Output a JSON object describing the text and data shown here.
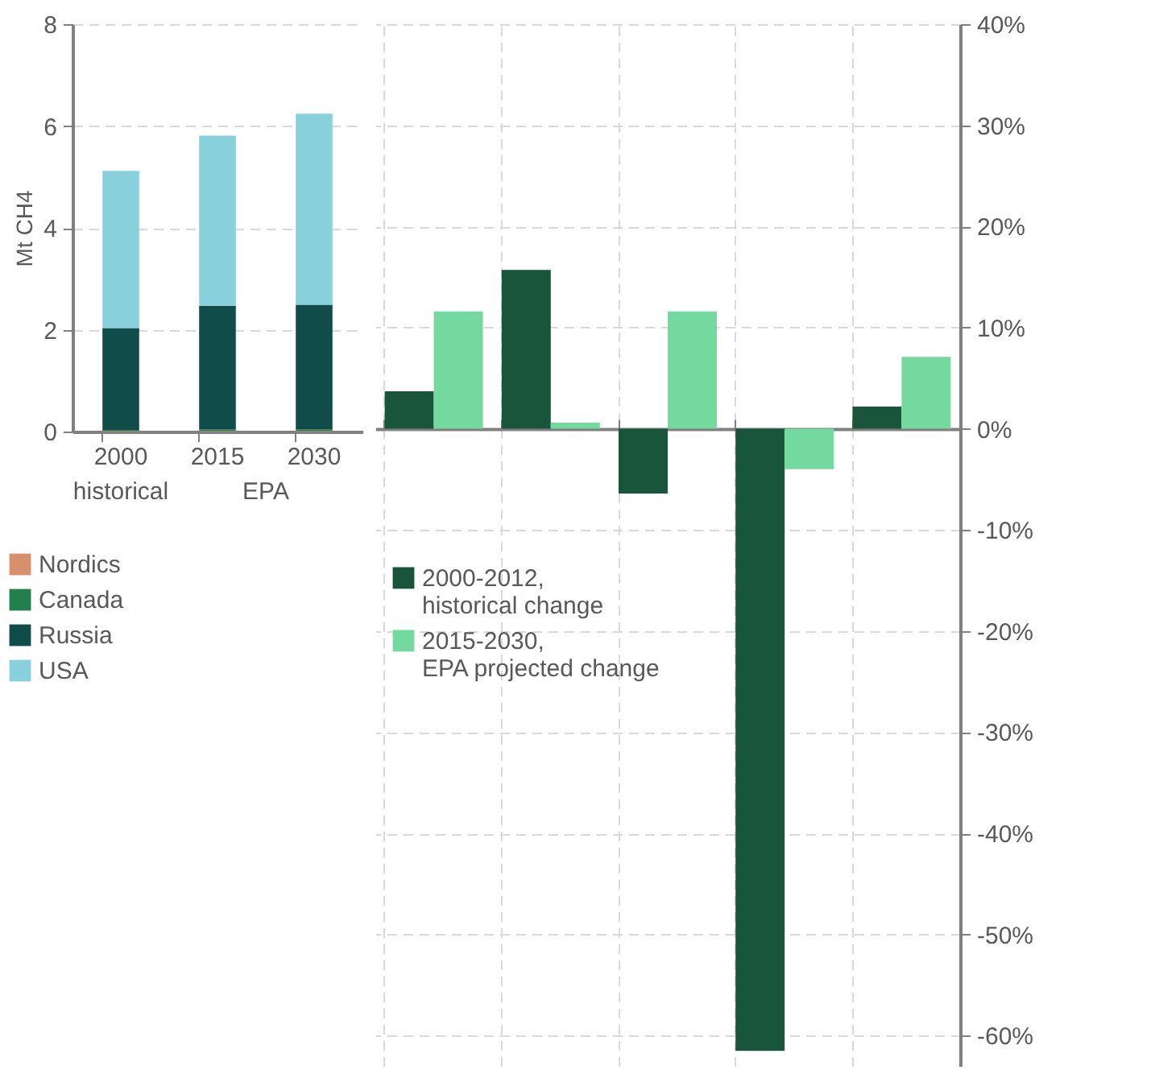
{
  "chart_data": [
    {
      "type": "bar",
      "stacked": true,
      "ylabel": "Mt CH4",
      "categories": [
        "2000",
        "2015",
        "2030"
      ],
      "series": [
        {
          "name": "Nordics",
          "color": "#d88f6e",
          "values": [
            0.01,
            0.01,
            0.01
          ]
        },
        {
          "name": "Canada",
          "color": "#23804c",
          "values": [
            0.02,
            0.03,
            0.03
          ]
        },
        {
          "name": "Russia",
          "color": "#0f4c4a",
          "values": [
            2.0,
            2.43,
            2.45
          ]
        },
        {
          "name": "USA",
          "color": "#87d0dc",
          "values": [
            3.09,
            3.34,
            3.75
          ]
        }
      ],
      "ylim": [
        0,
        8
      ],
      "yticks": [
        0,
        2,
        4,
        6,
        8
      ],
      "grid": "y",
      "legend": "bottom left",
      "annotations": [
        "historical",
        "EPA"
      ]
    },
    {
      "type": "bar",
      "categories": [
        null,
        null,
        null,
        null,
        null
      ],
      "series": [
        {
          "name": "2000-2012, historical change",
          "color": "#18553a",
          "axis": "y2",
          "values": [
            3.7,
            15.7,
            -6.4,
            -61.5,
            2.2
          ]
        },
        {
          "name": "2015-2030, EPA projected change",
          "color": "#74d99f",
          "axis": "y2",
          "values": [
            11.6,
            0.6,
            11.6,
            -4.0,
            7.1
          ]
        }
      ],
      "y2lim": [
        -63,
        40
      ],
      "y2ticks": [
        {
          "value": 40,
          "label": "40%"
        },
        {
          "value": 30,
          "label": "30%"
        },
        {
          "value": 20,
          "label": "20%"
        },
        {
          "value": 10,
          "label": "10%"
        },
        {
          "value": 0,
          "label": "0%"
        },
        {
          "value": -10,
          "label": "-10%"
        },
        {
          "value": -20,
          "label": "-20%"
        },
        {
          "value": -30,
          "label": "-30%"
        },
        {
          "value": -40,
          "label": "-40%"
        },
        {
          "value": -50,
          "label": "-50%"
        },
        {
          "value": -60,
          "label": "-60%"
        }
      ],
      "grid": true,
      "legend": "left"
    }
  ]
}
